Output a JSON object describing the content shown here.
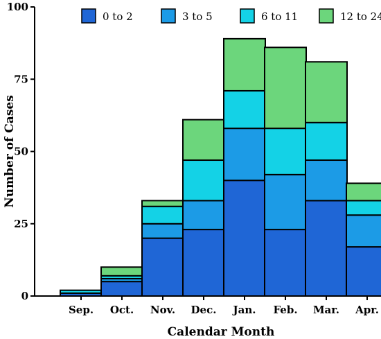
{
  "chart_data": {
    "type": "bar",
    "stacked": true,
    "title": "",
    "xlabel": "Calendar Month",
    "ylabel": "Number of Cases",
    "ylim": [
      0,
      100
    ],
    "yticks": [
      0,
      25,
      50,
      75,
      100
    ],
    "grid": false,
    "legend_position": "top",
    "categories": [
      "Sep.",
      "Oct.",
      "Nov.",
      "Dec.",
      "Jan.",
      "Feb.",
      "Mar.",
      "Apr."
    ],
    "series": [
      {
        "name": "0 to 2",
        "color": "#1f66d6",
        "values": [
          1,
          5,
          20,
          23,
          40,
          23,
          33,
          17
        ]
      },
      {
        "name": "3 to 5",
        "color": "#1c9be6",
        "values": [
          0,
          1,
          5,
          10,
          18,
          19,
          14,
          11
        ]
      },
      {
        "name": "6 to 11",
        "color": "#14d2e6",
        "values": [
          1,
          1,
          6,
          14,
          13,
          16,
          13,
          5
        ]
      },
      {
        "name": "12 to 24",
        "color": "#6cd67c",
        "values": [
          0,
          3,
          2,
          14,
          18,
          28,
          21,
          6
        ]
      }
    ]
  }
}
